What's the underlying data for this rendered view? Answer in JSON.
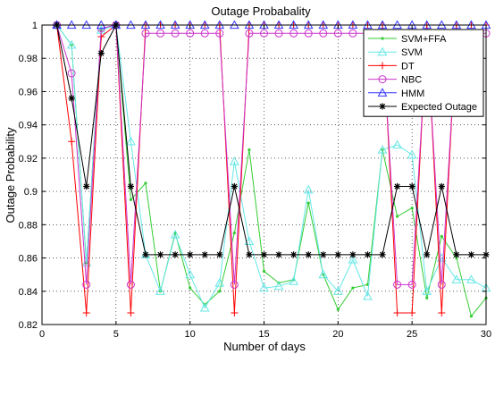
{
  "chart_data": {
    "type": "line",
    "title": "Outage Probabality",
    "xlabel": "Number of days",
    "ylabel": "Outage Probability",
    "xlim": [
      0,
      30
    ],
    "ylim": [
      0.82,
      1.0
    ],
    "xticks": [
      0,
      5,
      10,
      15,
      20,
      25,
      30
    ],
    "yticks": [
      0.82,
      0.84,
      0.86,
      0.88,
      0.9,
      0.92,
      0.94,
      0.96,
      0.98,
      1
    ],
    "ytick_labels": [
      "0.82",
      "0.84",
      "0.86",
      "0.88",
      "0.9",
      "0.92",
      "0.94",
      "0.96",
      "0.98",
      "1"
    ],
    "grid": "dotted",
    "legend_position": "top-right",
    "x": [
      1,
      2,
      3,
      4,
      5,
      6,
      7,
      8,
      9,
      10,
      11,
      12,
      13,
      14,
      15,
      16,
      17,
      18,
      19,
      20,
      21,
      22,
      23,
      24,
      25,
      26,
      27,
      28,
      29,
      30
    ],
    "series": [
      {
        "name": "SVM+FFA",
        "color": "#33cc33",
        "marker": "dot",
        "values": [
          1,
          0.988,
          0.857,
          0.997,
          1,
          0.895,
          0.905,
          0.84,
          0.875,
          0.842,
          0.832,
          0.84,
          0.875,
          0.925,
          0.852,
          0.845,
          0.847,
          0.893,
          0.85,
          0.829,
          0.842,
          0.844,
          0.925,
          0.885,
          0.89,
          0.836,
          0.873,
          0.86,
          0.825,
          0.836
        ]
      },
      {
        "name": "SVM",
        "color": "#66e6e6",
        "marker": "triangle-up",
        "values": [
          1,
          0.988,
          0.857,
          0.997,
          1,
          0.93,
          0.862,
          0.84,
          0.874,
          0.85,
          0.83,
          0.845,
          0.918,
          0.87,
          0.842,
          0.843,
          0.846,
          0.901,
          0.85,
          0.84,
          0.859,
          0.837,
          0.925,
          0.928,
          0.922,
          0.84,
          0.86,
          0.847,
          0.847,
          0.842
        ]
      },
      {
        "name": "DT",
        "color": "#ff0000",
        "marker": "plus",
        "values": [
          1,
          0.93,
          0.827,
          0.993,
          1,
          0.827,
          1,
          1,
          1,
          1,
          1,
          1,
          0.827,
          1,
          1,
          1,
          1,
          1,
          1,
          1,
          1,
          1,
          1,
          0.827,
          0.827,
          1,
          0.827,
          1,
          1,
          1
        ]
      },
      {
        "name": "NBC",
        "color": "#cc33cc",
        "marker": "circle",
        "values": [
          1,
          0.971,
          0.844,
          0.998,
          1,
          0.844,
          0.995,
          0.995,
          0.995,
          0.995,
          0.995,
          0.995,
          0.844,
          0.995,
          0.995,
          0.995,
          0.995,
          0.995,
          0.995,
          0.995,
          0.995,
          0.995,
          0.995,
          0.844,
          0.844,
          0.995,
          0.844,
          0.995,
          0.995,
          0.995
        ]
      },
      {
        "name": "HMM",
        "color": "#3333ff",
        "marker": "triangle-up",
        "values": [
          1,
          1,
          1,
          1,
          1,
          1,
          1,
          1,
          1,
          1,
          1,
          1,
          1,
          1,
          1,
          1,
          1,
          1,
          1,
          1,
          1,
          1,
          1,
          1,
          1,
          1,
          1,
          1,
          1,
          1
        ]
      },
      {
        "name": "Expected Outage",
        "color": "#000000",
        "marker": "star",
        "values": [
          1,
          0.956,
          0.903,
          0.983,
          1,
          0.903,
          0.862,
          0.862,
          0.862,
          0.862,
          0.862,
          0.862,
          0.903,
          0.862,
          0.862,
          0.862,
          0.862,
          0.862,
          0.862,
          0.862,
          0.862,
          0.862,
          0.862,
          0.903,
          0.903,
          0.862,
          0.903,
          0.862,
          0.862,
          0.862
        ]
      }
    ]
  }
}
